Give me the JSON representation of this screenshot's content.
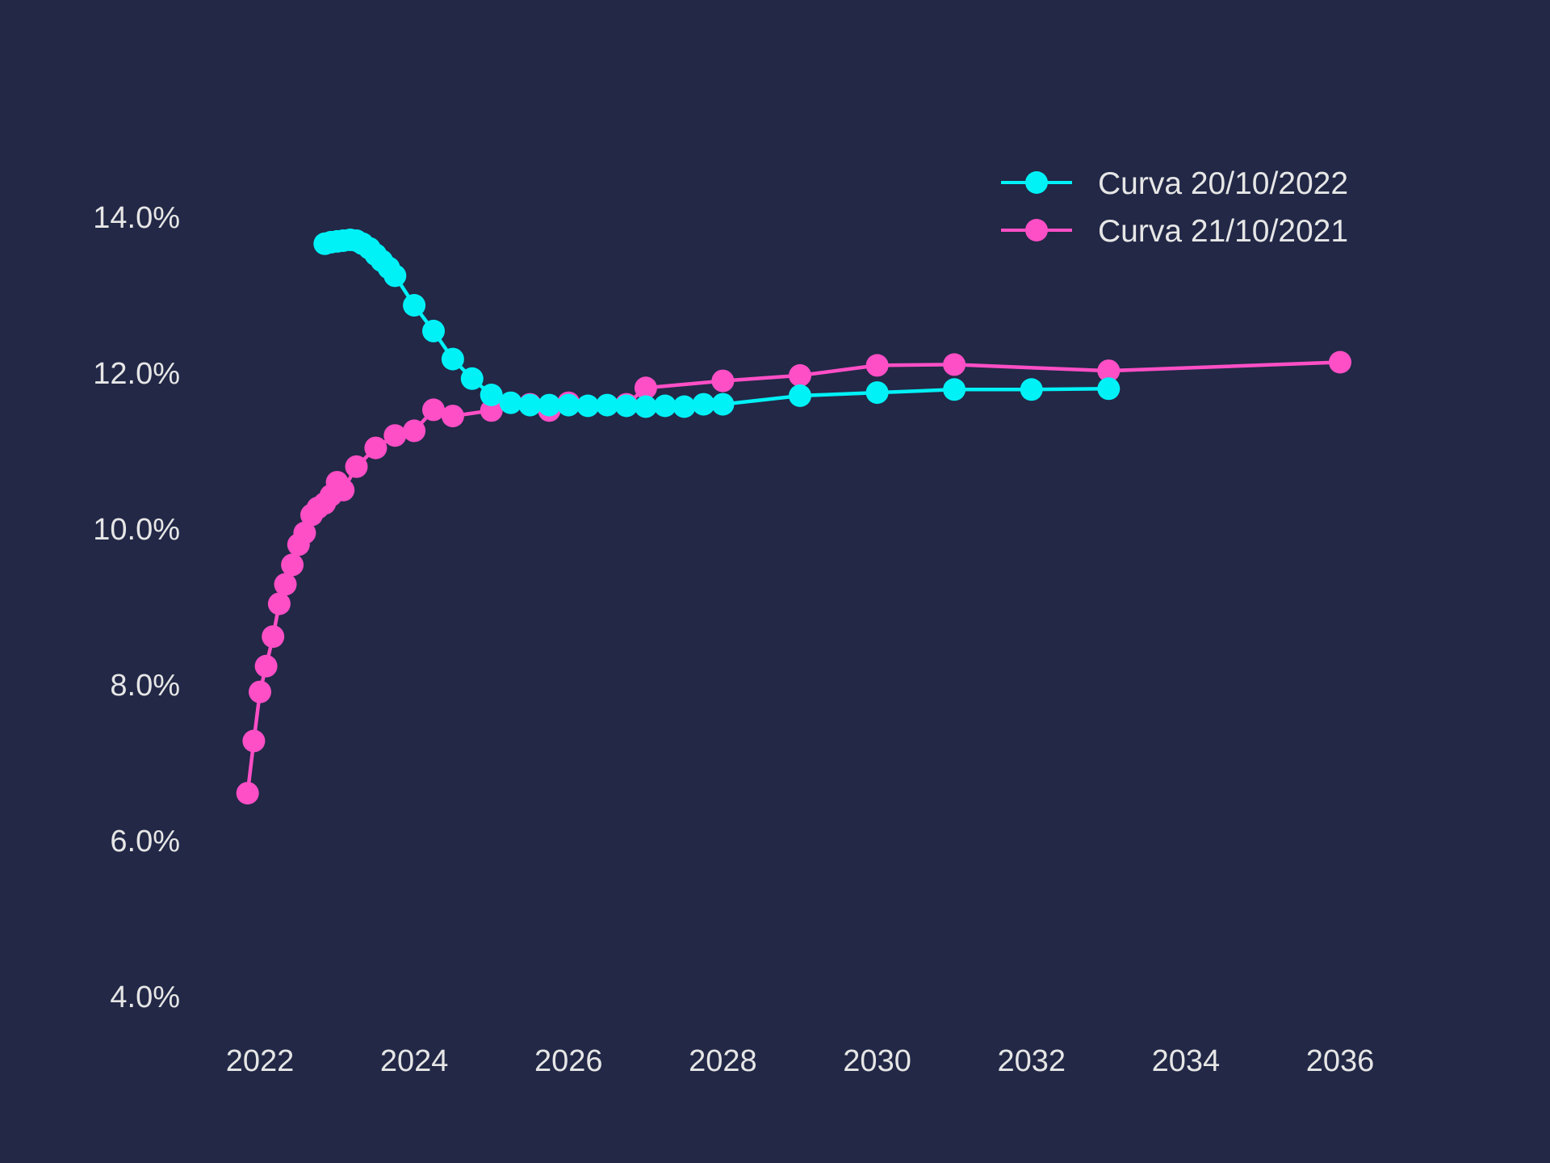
{
  "colors": {
    "background": "#222846",
    "text": "#e6e6e6"
  },
  "chart_data": {
    "type": "line",
    "title": "",
    "xlabel": "",
    "ylabel": "",
    "xlim": [
      2021.0,
      2037.0
    ],
    "ylim": [
      3.6,
      15.5
    ],
    "xticks": [
      2022,
      2024,
      2026,
      2028,
      2030,
      2032,
      2034,
      2036
    ],
    "xtick_labels": [
      "2022",
      "2024",
      "2026",
      "2028",
      "2030",
      "2032",
      "2034",
      "2036"
    ],
    "yticks": [
      4,
      6,
      8,
      10,
      12,
      14
    ],
    "ytick_labels": [
      "4.0%",
      "6.0%",
      "8.0%",
      "10.0%",
      "12.0%",
      "14.0%"
    ],
    "grid": false,
    "legend_position": "top-right",
    "series": [
      {
        "name": "Curva 20/10/2022",
        "color": "#00f2f7",
        "x": [
          2022.84,
          2022.92,
          2023.0,
          2023.08,
          2023.17,
          2023.25,
          2023.33,
          2023.42,
          2023.5,
          2023.58,
          2023.67,
          2023.75,
          2024.0,
          2024.25,
          2024.5,
          2024.75,
          2025.0,
          2025.25,
          2025.5,
          2025.75,
          2026.0,
          2026.25,
          2026.5,
          2026.75,
          2027.0,
          2027.25,
          2027.5,
          2027.75,
          2028.0,
          2029.0,
          2030.0,
          2031.0,
          2032.0,
          2033.0
        ],
        "y": [
          13.66,
          13.68,
          13.69,
          13.7,
          13.71,
          13.7,
          13.66,
          13.6,
          13.52,
          13.44,
          13.35,
          13.25,
          12.87,
          12.54,
          12.18,
          11.93,
          11.72,
          11.62,
          11.59,
          11.59,
          11.59,
          11.58,
          11.59,
          11.58,
          11.57,
          11.58,
          11.57,
          11.6,
          11.6,
          11.71,
          11.75,
          11.79,
          11.79,
          11.8
        ]
      },
      {
        "name": "Curva 21/10/2021",
        "color": "#ff4fc6",
        "x": [
          2021.84,
          2021.92,
          2022.0,
          2022.08,
          2022.17,
          2022.25,
          2022.33,
          2022.42,
          2022.5,
          2022.58,
          2022.67,
          2022.75,
          2022.84,
          2022.92,
          2023.0,
          2023.08,
          2023.25,
          2023.5,
          2023.75,
          2024.0,
          2024.25,
          2024.5,
          2025.0,
          2025.5,
          2025.75,
          2026.0,
          2026.75,
          2027.0,
          2028.0,
          2029.0,
          2030.0,
          2031.0,
          2033.0,
          2036.0
        ],
        "y": [
          6.61,
          7.28,
          7.91,
          8.24,
          8.62,
          9.04,
          9.29,
          9.54,
          9.8,
          9.95,
          10.18,
          10.27,
          10.33,
          10.43,
          10.6,
          10.5,
          10.8,
          11.04,
          11.2,
          11.26,
          11.53,
          11.45,
          11.52,
          11.6,
          11.52,
          11.62,
          11.6,
          11.81,
          11.9,
          11.97,
          12.1,
          12.11,
          12.03,
          12.14
        ]
      }
    ]
  }
}
